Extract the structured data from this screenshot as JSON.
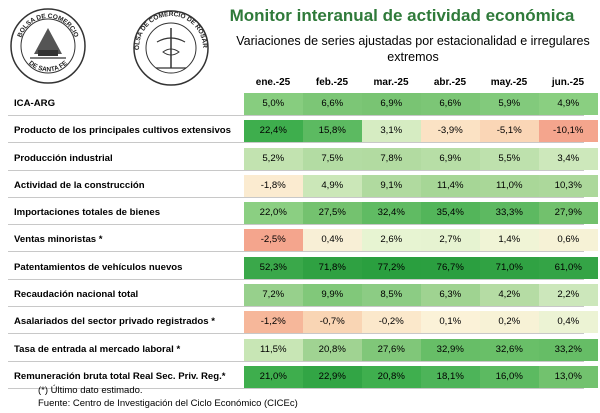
{
  "header": {
    "title": "Monitor interanual de actividad económica",
    "subtitle": "Variaciones de series ajustadas por estacionalidad e irregulares extremos",
    "logo_left_text_top": "BOLSA DE COMERCIO",
    "logo_left_text_bottom": "DE SANTA FE",
    "logo_right_text": "BOLSA DE COMERCIO DE ROSARIO"
  },
  "table": {
    "months": [
      "ene.-25",
      "feb.-25",
      "mar.-25",
      "abr.-25",
      "may.-25",
      "jun.-25"
    ],
    "rows": [
      {
        "label": "ICA-ARG",
        "values": [
          "5,0%",
          "6,6%",
          "6,9%",
          "6,6%",
          "5,9%",
          "4,9%"
        ],
        "colors": [
          "#87cd7f",
          "#7cc676",
          "#79c473",
          "#7cc676",
          "#82ca7c",
          "#8acf81"
        ]
      },
      {
        "label": "Producto de los principales cultivos extensivos",
        "values": [
          "22,4%",
          "15,8%",
          "3,1%",
          "-3,9%",
          "-5,1%",
          "-10,1%"
        ],
        "colors": [
          "#3eae4d",
          "#5cba61",
          "#d6ecc2",
          "#fbe2c4",
          "#fad6b6",
          "#f4a58d"
        ]
      },
      {
        "label": "Producción industrial",
        "values": [
          "5,2%",
          "7,5%",
          "7,8%",
          "6,9%",
          "5,5%",
          "3,4%"
        ],
        "colors": [
          "#c2e3b0",
          "#b3dca3",
          "#b2dba1",
          "#b7dea6",
          "#bee1ad",
          "#cde8bb"
        ]
      },
      {
        "label": "Actividad de la construcción",
        "values": [
          "-1,8%",
          "4,9%",
          "9,1%",
          "11,4%",
          "11,0%",
          "10,3%"
        ],
        "colors": [
          "#fbebd0",
          "#cbe7b8",
          "#b0da9f",
          "#a6d696",
          "#a9d798",
          "#acd89b"
        ]
      },
      {
        "label": "Importaciones totales de bienes",
        "values": [
          "22,0%",
          "27,5%",
          "32,4%",
          "35,4%",
          "33,3%",
          "27,9%"
        ],
        "colors": [
          "#8bcf82",
          "#74c26f",
          "#60bb63",
          "#53b55a",
          "#5db961",
          "#72c16d"
        ]
      },
      {
        "label": "Ventas minoristas *",
        "values": [
          "-2,5%",
          "0,4%",
          "2,6%",
          "2,7%",
          "1,4%",
          "0,6%"
        ],
        "colors": [
          "#f4a58d",
          "#f8efd6",
          "#e7f4d2",
          "#e6f3d1",
          "#f0f4d6",
          "#f6f2d6"
        ]
      },
      {
        "label": "Patentamientos de vehículos nuevos",
        "values": [
          "52,3%",
          "71,8%",
          "77,2%",
          "76,7%",
          "71,0%",
          "61,0%"
        ],
        "colors": [
          "#3aa84a",
          "#2fa142",
          "#2a9f3f",
          "#2b9f40",
          "#30a243",
          "#34a446"
        ]
      },
      {
        "label": "Recaudación nacional total",
        "values": [
          "7,2%",
          "9,9%",
          "8,5%",
          "6,3%",
          "4,2%",
          "2,2%"
        ],
        "colors": [
          "#97d08c",
          "#81c87a",
          "#8ccc84",
          "#9fd391",
          "#b5dca4",
          "#cce7bb"
        ]
      },
      {
        "label": "Asalariados del sector privado registrados *",
        "values": [
          "-1,2%",
          "-0,7%",
          "-0,2%",
          "0,1%",
          "0,2%",
          "0,4%"
        ],
        "colors": [
          "#f6b79a",
          "#f9d5b4",
          "#fbe8cb",
          "#fbf2d8",
          "#f7f2d6",
          "#ecf3d4"
        ]
      },
      {
        "label": "Tasa de entrada al mercado laboral *",
        "values": [
          "11,5%",
          "20,8%",
          "27,6%",
          "32,9%",
          "32,6%",
          "33,2%"
        ],
        "colors": [
          "#c8e6b5",
          "#a0d392",
          "#80c779",
          "#67be67",
          "#69bf68",
          "#66bd66"
        ]
      },
      {
        "label": "Remuneración bruta total Real Sec. Priv. Reg.*",
        "values": [
          "21,0%",
          "22,9%",
          "20,8%",
          "18,1%",
          "16,0%",
          "13,0%"
        ],
        "colors": [
          "#3eae4d",
          "#32a545",
          "#3faf4e",
          "#4db459",
          "#5cba61",
          "#72c26e"
        ]
      }
    ]
  },
  "footnotes": {
    "note": "(*) Último dato estimado.",
    "source": "Fuente: Centro de Investigación del Ciclo Económico (CICEc)"
  }
}
